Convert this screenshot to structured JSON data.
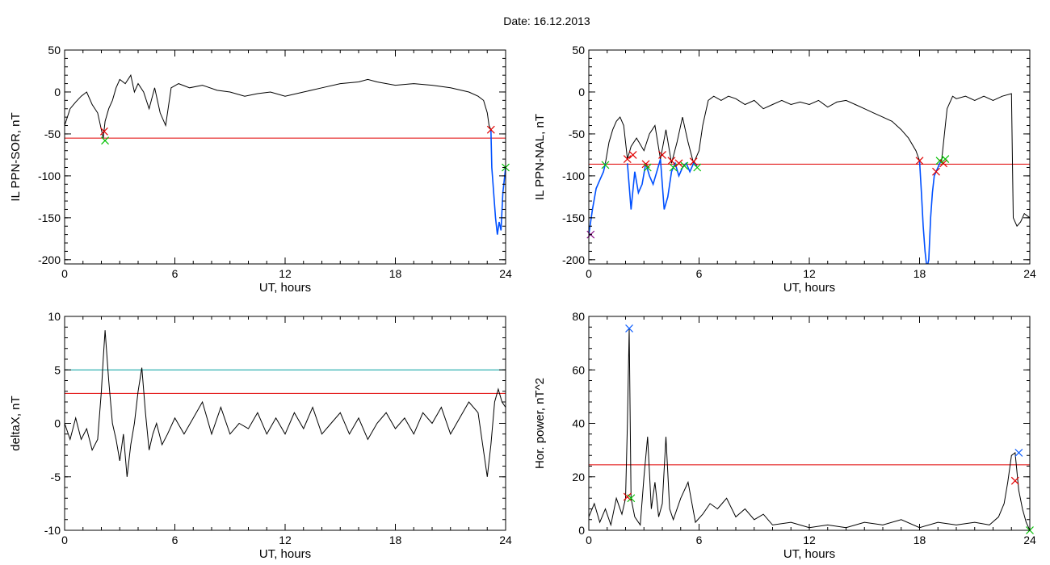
{
  "figure": {
    "title": "Date:  16.12.2013"
  },
  "colors": {
    "trace": "#000000",
    "threshold": "#e00000",
    "threshold2": "#00a0a0",
    "highlight": "#0050ff",
    "marker_red": "#e00000",
    "marker_green": "#00c000",
    "marker_blue": "#1060ff",
    "marker_purple": "#800080"
  },
  "chart_data": [
    {
      "id": "sor",
      "type": "line",
      "xlabel": "UT, hours",
      "ylabel": "IL PPN-SOR, nT",
      "xlim": [
        0,
        24
      ],
      "ylim": [
        -205,
        50
      ],
      "xticks": [
        0,
        6,
        12,
        18,
        24
      ],
      "yticks": [
        50,
        0,
        -50,
        -100,
        -150,
        -200
      ],
      "thresholds": [
        {
          "value": -55,
          "color": "threshold"
        }
      ],
      "series": [
        {
          "role": "trace",
          "x": [
            0,
            0.3,
            0.6,
            0.9,
            1.2,
            1.5,
            1.8,
            2.0,
            2.1,
            2.2,
            2.4,
            2.6,
            2.8,
            3.0,
            3.3,
            3.6,
            3.8,
            4.0,
            4.3,
            4.6,
            4.9,
            5.2,
            5.5,
            5.8,
            6.2,
            6.8,
            7.5,
            8.3,
            9.0,
            9.8,
            10.5,
            11.2,
            12.0,
            13.0,
            14.0,
            15.0,
            16.0,
            16.5,
            17.0,
            18.0,
            19.0,
            20.0,
            21.0,
            22.0,
            22.5,
            22.8,
            23.0,
            23.1,
            23.2
          ],
          "y": [
            -40,
            -20,
            -12,
            -5,
            0,
            -15,
            -25,
            -45,
            -55,
            -35,
            -20,
            -10,
            5,
            15,
            10,
            20,
            0,
            10,
            0,
            -20,
            5,
            -25,
            -40,
            5,
            10,
            5,
            8,
            2,
            0,
            -5,
            -2,
            0,
            -5,
            0,
            5,
            10,
            12,
            15,
            12,
            8,
            10,
            8,
            5,
            0,
            -5,
            -10,
            -25,
            -40,
            -45
          ]
        },
        {
          "role": "highlight",
          "x": [
            23.2,
            23.25,
            23.35,
            23.45,
            23.55,
            23.65,
            23.75,
            23.85,
            23.95,
            24.0
          ],
          "y": [
            -45,
            -90,
            -120,
            -150,
            -170,
            -155,
            -165,
            -120,
            -100,
            -90
          ]
        }
      ],
      "markers": [
        {
          "x": 2.15,
          "y": -47,
          "color": "marker_red"
        },
        {
          "x": 2.2,
          "y": -58,
          "color": "marker_green"
        },
        {
          "x": 23.2,
          "y": -45,
          "color": "marker_red"
        },
        {
          "x": 24.0,
          "y": -90,
          "color": "marker_green"
        }
      ]
    },
    {
      "id": "nal",
      "type": "line",
      "xlabel": "UT, hours",
      "ylabel": "IL PPN-NAL, nT",
      "xlim": [
        0,
        24
      ],
      "ylim": [
        -205,
        50
      ],
      "xticks": [
        0,
        6,
        12,
        18,
        24
      ],
      "yticks": [
        50,
        0,
        -50,
        -100,
        -150,
        -200
      ],
      "thresholds": [
        {
          "value": -86,
          "color": "threshold"
        }
      ],
      "series": [
        {
          "role": "trace",
          "x": [
            0.9,
            1.1,
            1.3,
            1.5,
            1.7,
            1.9,
            2.1,
            2.3,
            2.6,
            3.0,
            3.3,
            3.6,
            3.9,
            4.2,
            4.5,
            4.8,
            5.1,
            5.4,
            5.7,
            6.0,
            6.2,
            6.5,
            6.8,
            7.2,
            7.6,
            8.0,
            8.5,
            9.0,
            9.5,
            10.0,
            10.5,
            11.0,
            11.5,
            12.0,
            12.5,
            13.0,
            13.5,
            14.0,
            14.5,
            15.0,
            15.5,
            16.0,
            16.5,
            17.0,
            17.4,
            17.8,
            18.0
          ],
          "y": [
            -85,
            -60,
            -45,
            -35,
            -30,
            -40,
            -80,
            -65,
            -55,
            -70,
            -50,
            -40,
            -80,
            -45,
            -85,
            -60,
            -30,
            -60,
            -85,
            -70,
            -40,
            -10,
            -5,
            -10,
            -5,
            -8,
            -15,
            -10,
            -20,
            -15,
            -10,
            -15,
            -12,
            -15,
            -10,
            -18,
            -12,
            -10,
            -15,
            -20,
            -25,
            -30,
            -35,
            -45,
            -55,
            -70,
            -82
          ]
        },
        {
          "role": "highlight",
          "x": [
            0,
            0.2,
            0.4,
            0.6,
            0.8,
            0.9
          ],
          "y": [
            -170,
            -140,
            -115,
            -105,
            -95,
            -85
          ]
        },
        {
          "role": "highlight",
          "x": [
            2.1,
            2.3,
            2.5,
            2.7,
            2.9,
            3.1,
            3.3,
            3.5,
            3.7,
            3.9,
            4.1,
            4.3,
            4.5,
            4.7,
            4.9,
            5.1,
            5.3,
            5.5,
            5.7,
            5.9
          ],
          "y": [
            -85,
            -140,
            -95,
            -120,
            -110,
            -85,
            -100,
            -110,
            -95,
            -80,
            -140,
            -125,
            -95,
            -85,
            -100,
            -90,
            -85,
            -95,
            -85,
            -88
          ]
        },
        {
          "role": "highlight",
          "x": [
            18.0,
            18.1,
            18.2,
            18.3,
            18.4,
            18.5,
            18.6,
            18.7,
            18.8,
            18.9,
            19.0,
            19.1,
            19.2
          ],
          "y": [
            -82,
            -120,
            -160,
            -190,
            -210,
            -200,
            -150,
            -120,
            -100,
            -95,
            -90,
            -85,
            -82
          ]
        },
        {
          "role": "trace",
          "x": [
            19.2,
            19.5,
            19.8,
            20.0,
            20.5,
            21.0,
            21.5,
            22.0,
            22.5,
            23.0,
            23.1,
            23.3,
            23.5,
            23.7,
            24.0
          ],
          "y": [
            -82,
            -20,
            -5,
            -8,
            -5,
            -10,
            -5,
            -10,
            -5,
            -2,
            -150,
            -160,
            -155,
            -145,
            -150
          ]
        }
      ],
      "markers": [
        {
          "x": 0.1,
          "y": -170,
          "color": "marker_purple"
        },
        {
          "x": 0.9,
          "y": -87,
          "color": "marker_green"
        },
        {
          "x": 2.1,
          "y": -80,
          "color": "marker_red"
        },
        {
          "x": 2.4,
          "y": -75,
          "color": "marker_red"
        },
        {
          "x": 3.1,
          "y": -86,
          "color": "marker_red"
        },
        {
          "x": 3.2,
          "y": -90,
          "color": "marker_green"
        },
        {
          "x": 4.0,
          "y": -75,
          "color": "marker_red"
        },
        {
          "x": 4.5,
          "y": -82,
          "color": "marker_red"
        },
        {
          "x": 4.6,
          "y": -90,
          "color": "marker_green"
        },
        {
          "x": 4.9,
          "y": -85,
          "color": "marker_red"
        },
        {
          "x": 5.2,
          "y": -88,
          "color": "marker_green"
        },
        {
          "x": 5.7,
          "y": -83,
          "color": "marker_red"
        },
        {
          "x": 5.9,
          "y": -90,
          "color": "marker_green"
        },
        {
          "x": 18.0,
          "y": -82,
          "color": "marker_red"
        },
        {
          "x": 18.9,
          "y": -95,
          "color": "marker_red"
        },
        {
          "x": 19.1,
          "y": -82,
          "color": "marker_green"
        },
        {
          "x": 19.3,
          "y": -85,
          "color": "marker_red"
        },
        {
          "x": 19.4,
          "y": -80,
          "color": "marker_green"
        }
      ]
    },
    {
      "id": "deltax",
      "type": "line",
      "xlabel": "UT, hours",
      "ylabel": "deltaX, nT",
      "xlim": [
        0,
        24
      ],
      "ylim": [
        -10,
        10
      ],
      "xticks": [
        0,
        6,
        12,
        18,
        24
      ],
      "yticks": [
        10,
        5,
        0,
        -5,
        -10
      ],
      "thresholds": [
        {
          "value": 5,
          "color": "threshold2"
        },
        {
          "value": 2.8,
          "color": "threshold"
        }
      ],
      "series": [
        {
          "role": "trace",
          "x": [
            0,
            0.3,
            0.6,
            0.9,
            1.2,
            1.5,
            1.8,
            2.0,
            2.1,
            2.2,
            2.4,
            2.6,
            2.8,
            3.0,
            3.2,
            3.4,
            3.6,
            3.8,
            4.0,
            4.2,
            4.4,
            4.6,
            4.8,
            5.0,
            5.3,
            5.6,
            6.0,
            6.5,
            7.0,
            7.5,
            8.0,
            8.5,
            9.0,
            9.5,
            10.0,
            10.5,
            11.0,
            11.5,
            12.0,
            12.5,
            13.0,
            13.5,
            14.0,
            14.5,
            15.0,
            15.5,
            16.0,
            16.5,
            17.0,
            17.5,
            18.0,
            18.5,
            19.0,
            19.5,
            20.0,
            20.5,
            21.0,
            21.5,
            22.0,
            22.5,
            23.0,
            23.2,
            23.4,
            23.6,
            23.8,
            24.0
          ],
          "y": [
            0,
            -1.5,
            0.5,
            -1.5,
            -0.5,
            -2.5,
            -1.5,
            3,
            6,
            8.7,
            4,
            0,
            -1.5,
            -3.5,
            -1,
            -5,
            -2,
            0,
            3,
            5.2,
            1,
            -2.5,
            -1,
            0,
            -2,
            -1,
            0.5,
            -1,
            0.5,
            2,
            -1,
            1.5,
            -1,
            0,
            -0.5,
            1,
            -1,
            0.5,
            -1,
            1,
            -0.5,
            1.5,
            -1,
            0,
            1,
            -1,
            0.5,
            -1.5,
            0,
            1,
            -0.5,
            0.5,
            -1,
            1,
            0,
            1.5,
            -1,
            0.5,
            2,
            1,
            -5,
            -2,
            2,
            3.2,
            2,
            1.5
          ]
        }
      ],
      "markers": []
    },
    {
      "id": "power",
      "type": "line",
      "xlabel": "UT, hours",
      "ylabel": "Hor. power, nT^2",
      "xlim": [
        0,
        24
      ],
      "ylim": [
        0,
        80
      ],
      "xticks": [
        0,
        6,
        12,
        18,
        24
      ],
      "yticks": [
        80,
        60,
        40,
        20,
        0
      ],
      "thresholds": [
        {
          "value": 24.5,
          "color": "threshold"
        }
      ],
      "series": [
        {
          "role": "trace",
          "x": [
            0,
            0.3,
            0.6,
            0.9,
            1.2,
            1.5,
            1.8,
            2.0,
            2.1,
            2.2,
            2.3,
            2.5,
            2.8,
            3.0,
            3.2,
            3.4,
            3.6,
            3.8,
            4.0,
            4.2,
            4.4,
            4.6,
            5.0,
            5.4,
            5.8,
            6.2,
            6.6,
            7.0,
            7.5,
            8.0,
            8.5,
            9.0,
            9.5,
            10.0,
            11.0,
            12.0,
            13.0,
            14.0,
            15.0,
            16.0,
            17.0,
            18.0,
            19.0,
            20.0,
            21.0,
            21.8,
            22.3,
            22.6,
            22.8,
            23.0,
            23.2,
            23.4,
            23.6,
            23.8,
            24.0
          ],
          "y": [
            5,
            10,
            3,
            8,
            2,
            12,
            6,
            12,
            40,
            75.5,
            12,
            5,
            2,
            20,
            35,
            8,
            18,
            5,
            10,
            35,
            8,
            4,
            12,
            18,
            3,
            6,
            10,
            8,
            12,
            5,
            8,
            4,
            6,
            2,
            3,
            1,
            2,
            1,
            3,
            2,
            4,
            1,
            3,
            2,
            3,
            2,
            5,
            10,
            18,
            28,
            29,
            15,
            8,
            3,
            0
          ]
        }
      ],
      "markers": [
        {
          "x": 2.2,
          "y": 75.5,
          "color": "marker_blue"
        },
        {
          "x": 2.1,
          "y": 12.5,
          "color": "marker_red"
        },
        {
          "x": 2.3,
          "y": 12,
          "color": "marker_green"
        },
        {
          "x": 23.4,
          "y": 29,
          "color": "marker_blue"
        },
        {
          "x": 23.2,
          "y": 18.5,
          "color": "marker_red"
        },
        {
          "x": 24.0,
          "y": 0,
          "color": "marker_green"
        }
      ]
    }
  ]
}
